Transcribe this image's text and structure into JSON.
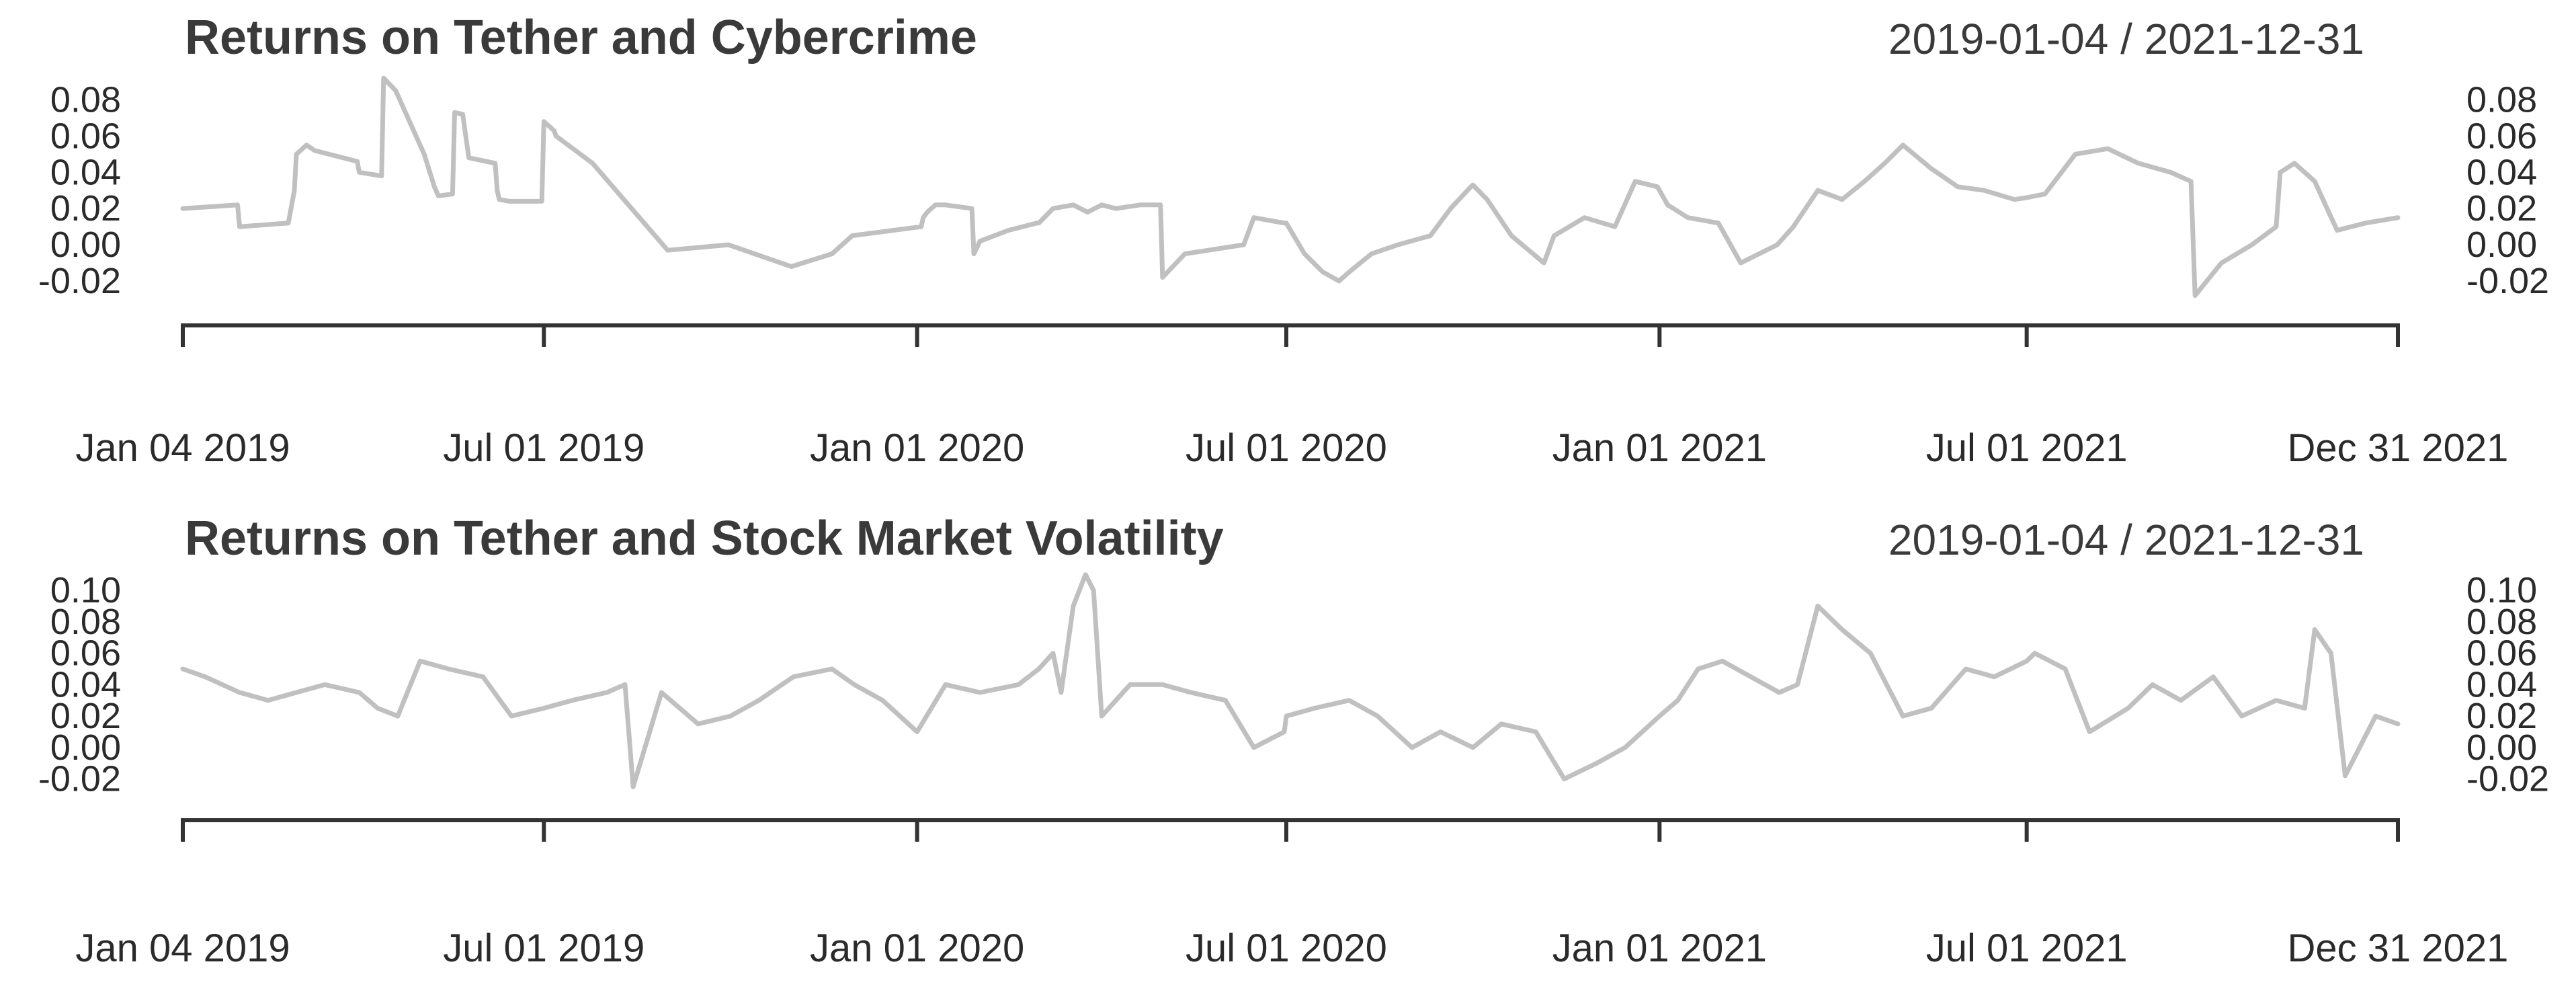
{
  "chart_data": [
    {
      "type": "line",
      "title": "Returns on Tether and Cybercrime",
      "date_range_label": "2019-01-04 / 2021-12-31",
      "xlabel": "",
      "ylabel": "",
      "y_ticks": [
        "0.08",
        "0.06",
        "0.04",
        "0.02",
        "0.00",
        "-0.02"
      ],
      "ylim": [
        -0.03,
        0.095
      ],
      "x_ticks": [
        "Jan 04 2019",
        "Jul 01 2019",
        "Jan 01 2020",
        "Jul 01 2020",
        "Jan 01 2021",
        "Jul 01 2021",
        "Dec 31 2021"
      ],
      "x_start": "2019-01-04",
      "x_end": "2021-12-31",
      "series": [
        {
          "name": "Returns on Tether and Cybercrime",
          "color": "#c0c0c0",
          "x": [
            "2019-01-04",
            "2019-01-31",
            "2019-02-01",
            "2019-02-25",
            "2019-02-28",
            "2019-03-01",
            "2019-03-06",
            "2019-03-10",
            "2019-03-31",
            "2019-04-01",
            "2019-04-12",
            "2019-04-13",
            "2019-04-19",
            "2019-04-25",
            "2019-05-01",
            "2019-05-03",
            "2019-05-08",
            "2019-05-10",
            "2019-05-17",
            "2019-05-18",
            "2019-05-22",
            "2019-05-25",
            "2019-06-07",
            "2019-06-08",
            "2019-06-09",
            "2019-06-14",
            "2019-06-18",
            "2019-06-30",
            "2019-07-01",
            "2019-07-06",
            "2019-07-07",
            "2019-07-25",
            "2019-08-31",
            "2019-09-30",
            "2019-10-31",
            "2019-11-20",
            "2019-11-30",
            "2020-01-03",
            "2020-01-04",
            "2020-01-06",
            "2020-01-10",
            "2020-01-15",
            "2020-01-28",
            "2020-01-29",
            "2020-02-01",
            "2020-02-15",
            "2020-02-29",
            "2020-03-01",
            "2020-03-08",
            "2020-03-18",
            "2020-03-25",
            "2020-04-01",
            "2020-04-08",
            "2020-04-20",
            "2020-04-30",
            "2020-05-01",
            "2020-05-12",
            "2020-06-10",
            "2020-06-15",
            "2020-06-30",
            "2020-07-01",
            "2020-07-10",
            "2020-07-19",
            "2020-07-27",
            "2020-08-01",
            "2020-08-12",
            "2020-08-25",
            "2020-09-10",
            "2020-09-20",
            "2020-09-30",
            "2020-10-01",
            "2020-10-08",
            "2020-10-20",
            "2020-11-05",
            "2020-11-10",
            "2020-11-25",
            "2020-12-10",
            "2020-12-20",
            "2020-12-31",
            "2021-01-05",
            "2021-01-15",
            "2021-01-30",
            "2021-02-10",
            "2021-02-28",
            "2021-03-08",
            "2021-03-20",
            "2021-04-01",
            "2021-04-12",
            "2021-04-22",
            "2021-05-01",
            "2021-05-15",
            "2021-05-28",
            "2021-06-10",
            "2021-06-25",
            "2021-07-01",
            "2021-07-10",
            "2021-07-25",
            "2021-08-10",
            "2021-08-25",
            "2021-09-10",
            "2021-09-20",
            "2021-09-22",
            "2021-10-05",
            "2021-10-20",
            "2021-11-01",
            "2021-11-03",
            "2021-11-10",
            "2021-11-15",
            "2021-11-20",
            "2021-12-01",
            "2021-12-15",
            "2021-12-31"
          ],
          "values": [
            0.02,
            0.022,
            0.01,
            0.012,
            0.03,
            0.05,
            0.055,
            0.052,
            0.046,
            0.04,
            0.038,
            0.092,
            0.085,
            0.07,
            0.055,
            0.05,
            0.032,
            0.027,
            0.028,
            0.073,
            0.072,
            0.048,
            0.045,
            0.03,
            0.025,
            0.024,
            0.024,
            0.024,
            0.068,
            0.063,
            0.06,
            0.045,
            -0.003,
            0.0,
            -0.012,
            -0.005,
            0.005,
            0.01,
            0.015,
            0.018,
            0.022,
            0.022,
            0.02,
            -0.005,
            0.002,
            0.008,
            0.012,
            0.012,
            0.02,
            0.022,
            0.018,
            0.022,
            0.02,
            0.022,
            0.022,
            -0.018,
            -0.005,
            0.0,
            0.015,
            0.012,
            0.012,
            -0.005,
            -0.015,
            -0.02,
            -0.015,
            -0.005,
            0.0,
            0.005,
            0.02,
            0.032,
            0.033,
            0.025,
            0.005,
            -0.01,
            0.005,
            0.015,
            0.01,
            0.035,
            0.032,
            0.022,
            0.015,
            0.012,
            -0.01,
            0.0,
            0.01,
            0.03,
            0.025,
            0.035,
            0.045,
            0.055,
            0.042,
            0.032,
            0.03,
            0.025,
            0.026,
            0.028,
            0.05,
            0.053,
            0.045,
            0.04,
            0.035,
            -0.028,
            -0.01,
            0.0,
            0.01,
            0.04,
            0.045,
            0.04,
            0.035,
            0.008,
            0.012,
            0.015
          ]
        }
      ]
    },
    {
      "type": "line",
      "title": "Returns on Tether and Stock Market Volatility",
      "date_range_label": "2019-01-04 / 2021-12-31",
      "xlabel": "",
      "ylabel": "",
      "y_ticks": [
        "0.10",
        "0.08",
        "0.06",
        "0.04",
        "0.02",
        "0.00",
        "-0.02"
      ],
      "ylim": [
        -0.03,
        0.115
      ],
      "x_ticks": [
        "Jan 04 2019",
        "Jul 01 2019",
        "Jan 01 2020",
        "Jul 01 2020",
        "Jan 01 2021",
        "Jul 01 2021",
        "Dec 31 2021"
      ],
      "x_start": "2019-01-04",
      "x_end": "2021-12-31",
      "series": [
        {
          "name": "Returns on Tether and Stock Market Volatility",
          "color": "#c0c0c0",
          "x": [
            "2019-01-04",
            "2019-01-15",
            "2019-02-01",
            "2019-02-15",
            "2019-03-01",
            "2019-03-15",
            "2019-04-01",
            "2019-04-10",
            "2019-04-20",
            "2019-05-01",
            "2019-05-15",
            "2019-06-01",
            "2019-06-15",
            "2019-07-01",
            "2019-07-15",
            "2019-08-01",
            "2019-08-10",
            "2019-08-14",
            "2019-08-28",
            "2019-09-15",
            "2019-10-01",
            "2019-10-15",
            "2019-11-01",
            "2019-11-20",
            "2019-12-01",
            "2019-12-15",
            "2020-01-01",
            "2020-01-15",
            "2020-02-01",
            "2020-02-20",
            "2020-03-01",
            "2020-03-08",
            "2020-03-12",
            "2020-03-18",
            "2020-03-24",
            "2020-03-28",
            "2020-04-01",
            "2020-04-15",
            "2020-05-01",
            "2020-05-15",
            "2020-06-01",
            "2020-06-15",
            "2020-06-30",
            "2020-07-01",
            "2020-07-15",
            "2020-08-01",
            "2020-08-15",
            "2020-09-01",
            "2020-09-15",
            "2020-10-01",
            "2020-10-15",
            "2020-11-01",
            "2020-11-15",
            "2020-12-01",
            "2020-12-15",
            "2021-01-01",
            "2021-01-10",
            "2021-01-20",
            "2021-02-01",
            "2021-02-15",
            "2021-03-01",
            "2021-03-10",
            "2021-03-20",
            "2021-04-01",
            "2021-04-15",
            "2021-05-01",
            "2021-05-15",
            "2021-06-01",
            "2021-06-15",
            "2021-07-01",
            "2021-07-05",
            "2021-07-20",
            "2021-08-01",
            "2021-08-20",
            "2021-09-01",
            "2021-09-15",
            "2021-10-01",
            "2021-10-15",
            "2021-11-01",
            "2021-11-15",
            "2021-11-20",
            "2021-11-28",
            "2021-12-05",
            "2021-12-20",
            "2021-12-31"
          ],
          "values": [
            0.05,
            0.045,
            0.035,
            0.03,
            0.035,
            0.04,
            0.035,
            0.025,
            0.02,
            0.055,
            0.05,
            0.045,
            0.02,
            0.025,
            0.03,
            0.035,
            0.04,
            -0.025,
            0.035,
            0.015,
            0.02,
            0.03,
            0.045,
            0.05,
            0.04,
            0.03,
            0.01,
            0.04,
            0.035,
            0.04,
            0.05,
            0.06,
            0.035,
            0.09,
            0.11,
            0.1,
            0.02,
            0.04,
            0.04,
            0.035,
            0.03,
            0.0,
            0.01,
            0.02,
            0.025,
            0.03,
            0.02,
            0.0,
            0.01,
            0.0,
            0.015,
            0.01,
            -0.02,
            -0.01,
            0.0,
            0.02,
            0.03,
            0.05,
            0.055,
            0.045,
            0.035,
            0.04,
            0.09,
            0.075,
            0.06,
            0.02,
            0.025,
            0.05,
            0.045,
            0.055,
            0.06,
            0.05,
            0.01,
            0.025,
            0.04,
            0.03,
            0.045,
            0.02,
            0.03,
            0.025,
            0.075,
            0.06,
            -0.018,
            0.02,
            0.015
          ]
        }
      ]
    }
  ]
}
